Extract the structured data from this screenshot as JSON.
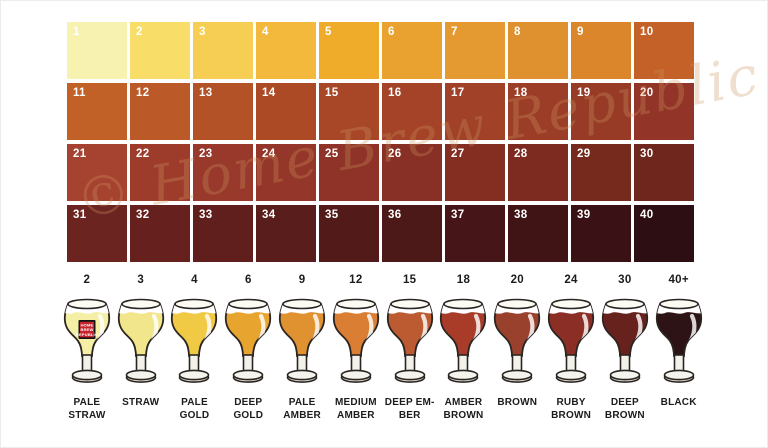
{
  "watermark": "© Home Brew Republic",
  "logo": {
    "lines": [
      "HOME",
      "BREW",
      "REPUBLIC"
    ]
  },
  "swatches": [
    {
      "n": "1",
      "color": "#F7F2B0"
    },
    {
      "n": "2",
      "color": "#F8DD68"
    },
    {
      "n": "3",
      "color": "#F6CE53"
    },
    {
      "n": "4",
      "color": "#F2B93C"
    },
    {
      "n": "5",
      "color": "#EFAC2B"
    },
    {
      "n": "6",
      "color": "#E9A130"
    },
    {
      "n": "7",
      "color": "#E59A31"
    },
    {
      "n": "8",
      "color": "#E0912F"
    },
    {
      "n": "9",
      "color": "#DC862C"
    },
    {
      "n": "10",
      "color": "#C36129"
    },
    {
      "n": "11",
      "color": "#C16128"
    },
    {
      "n": "12",
      "color": "#BB5A28"
    },
    {
      "n": "13",
      "color": "#B35127"
    },
    {
      "n": "14",
      "color": "#AC4A26"
    },
    {
      "n": "15",
      "color": "#A84727"
    },
    {
      "n": "16",
      "color": "#A44327"
    },
    {
      "n": "17",
      "color": "#A04128"
    },
    {
      "n": "18",
      "color": "#9C3E27"
    },
    {
      "n": "19",
      "color": "#973B27"
    },
    {
      "n": "20",
      "color": "#923428"
    },
    {
      "n": "21",
      "color": "#A64330"
    },
    {
      "n": "22",
      "color": "#9E3C2C"
    },
    {
      "n": "23",
      "color": "#99392B"
    },
    {
      "n": "24",
      "color": "#943629"
    },
    {
      "n": "25",
      "color": "#8F3328"
    },
    {
      "n": "26",
      "color": "#893026"
    },
    {
      "n": "27",
      "color": "#842E22"
    },
    {
      "n": "28",
      "color": "#7D2B20"
    },
    {
      "n": "29",
      "color": "#762A1E"
    },
    {
      "n": "30",
      "color": "#6F261C"
    },
    {
      "n": "31",
      "color": "#6C2420"
    },
    {
      "n": "32",
      "color": "#66211E"
    },
    {
      "n": "33",
      "color": "#601F1D"
    },
    {
      "n": "34",
      "color": "#591D1B"
    },
    {
      "n": "35",
      "color": "#531A1A"
    },
    {
      "n": "36",
      "color": "#4C1818"
    },
    {
      "n": "37",
      "color": "#461517"
    },
    {
      "n": "38",
      "color": "#401315"
    },
    {
      "n": "39",
      "color": "#3A1114"
    },
    {
      "n": "40",
      "color": "#2D0E13"
    }
  ],
  "glasses": [
    {
      "srm": "2",
      "label_lines": [
        "PALE",
        "STRAW"
      ],
      "color": "#F5EFA6",
      "has_logo": true
    },
    {
      "srm": "3",
      "label_lines": [
        "STRAW"
      ],
      "color": "#F2E68C",
      "has_logo": false
    },
    {
      "srm": "4",
      "label_lines": [
        "PALE",
        "GOLD"
      ],
      "color": "#F0C945",
      "has_logo": false
    },
    {
      "srm": "6",
      "label_lines": [
        "DEEP",
        "GOLD"
      ],
      "color": "#E7A52F",
      "has_logo": false
    },
    {
      "srm": "9",
      "label_lines": [
        "PALE",
        "AMBER"
      ],
      "color": "#E09130",
      "has_logo": false
    },
    {
      "srm": "12",
      "label_lines": [
        "MEDIUM",
        "AMBER"
      ],
      "color": "#D97E33",
      "has_logo": false
    },
    {
      "srm": "15",
      "label_lines": [
        "DEEP EM-",
        "BER"
      ],
      "color": "#BC5A31",
      "has_logo": false
    },
    {
      "srm": "18",
      "label_lines": [
        "AMBER",
        "BROWN"
      ],
      "color": "#A83C28",
      "has_logo": false
    },
    {
      "srm": "20",
      "label_lines": [
        "BROWN"
      ],
      "color": "#9A412E",
      "has_logo": false
    },
    {
      "srm": "24",
      "label_lines": [
        "RUBY",
        "BROWN"
      ],
      "color": "#8B2E25",
      "has_logo": false
    },
    {
      "srm": "30",
      "label_lines": [
        "DEEP",
        "BROWN"
      ],
      "color": "#67221D",
      "has_logo": false
    },
    {
      "srm": "40+",
      "label_lines": [
        "BLACK"
      ],
      "color": "#2E1316",
      "has_logo": false
    }
  ]
}
